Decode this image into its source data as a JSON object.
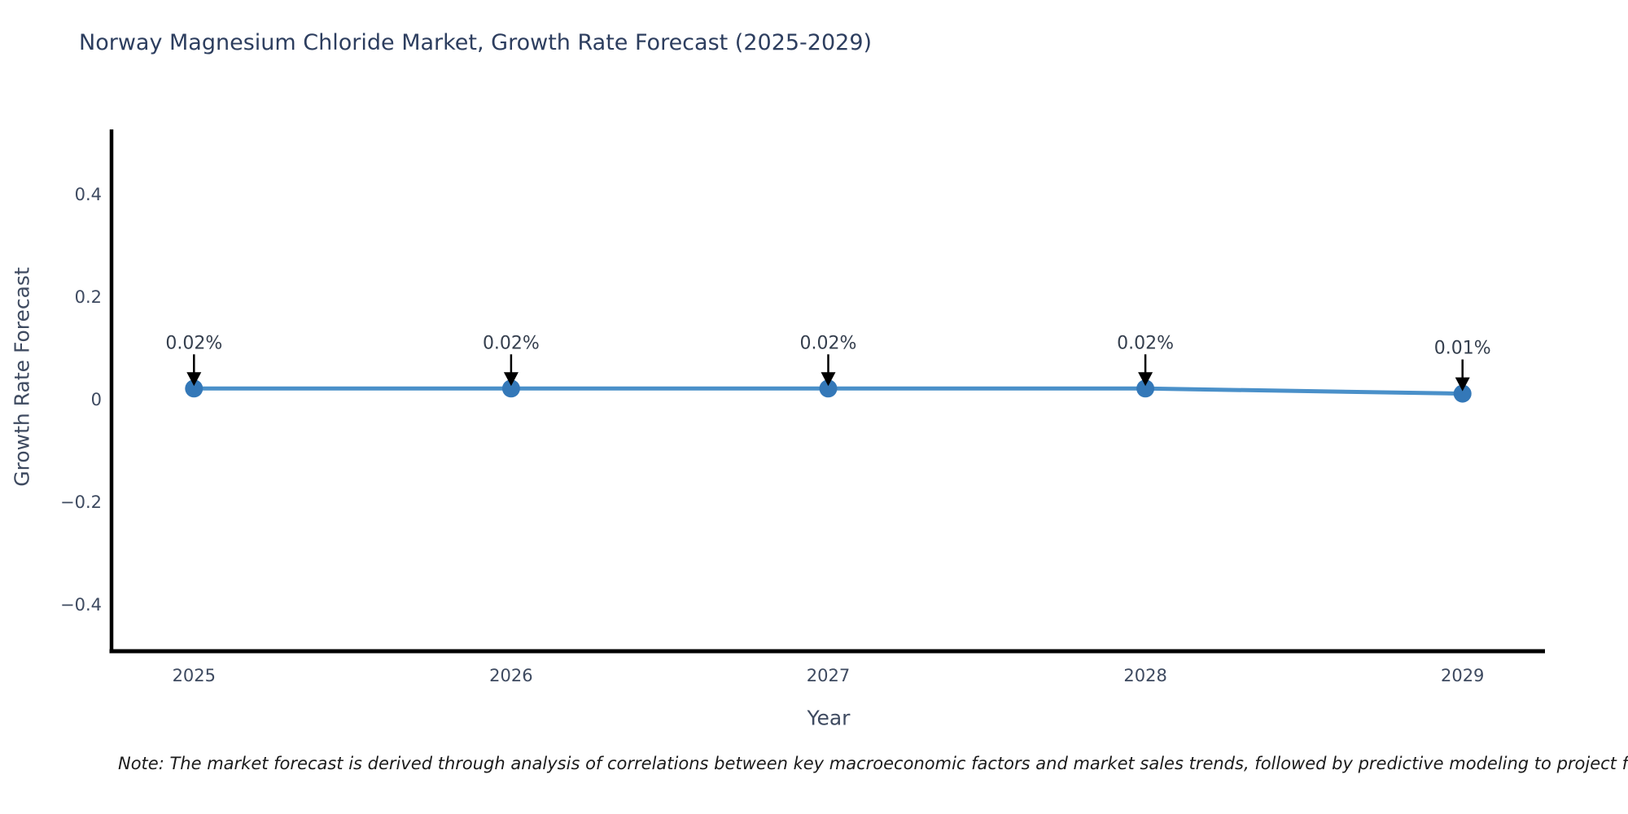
{
  "chart_data": {
    "type": "line",
    "title": "Norway Magnesium Chloride Market, Growth Rate Forecast (2025-2029)",
    "xlabel": "Year",
    "ylabel": "Growth Rate Forecast",
    "categories": [
      "2025",
      "2026",
      "2027",
      "2028",
      "2029"
    ],
    "series": [
      {
        "name": "Growth Rate Forecast",
        "values": [
          0.02,
          0.02,
          0.02,
          0.02,
          0.01
        ],
        "point_labels": [
          "0.02%",
          "0.02%",
          "0.02%",
          "0.02%",
          "0.01%"
        ]
      }
    ],
    "yticks": [
      -0.4,
      -0.2,
      0,
      0.2,
      0.4
    ],
    "ytick_labels": [
      "−0.4",
      "−0.2",
      "0",
      "0.2",
      "0.4"
    ],
    "xlim": [
      2024.74,
      2029.26
    ],
    "ylim": [
      -0.492,
      0.525
    ],
    "grid": false,
    "legend": "none",
    "colors": {
      "line": "#4a90c9",
      "marker": "#3478b8",
      "spine": "#000000",
      "arrow": "#000000",
      "title_text": "#2d3e5f",
      "tick_text": "#3e4a60",
      "annotation_text": "#353f4e"
    }
  },
  "note": {
    "text": "Note: The market forecast is derived through analysis of correlations between key macroeconomic factors and market sales trends, followed by predictive modeling to project future sa"
  }
}
